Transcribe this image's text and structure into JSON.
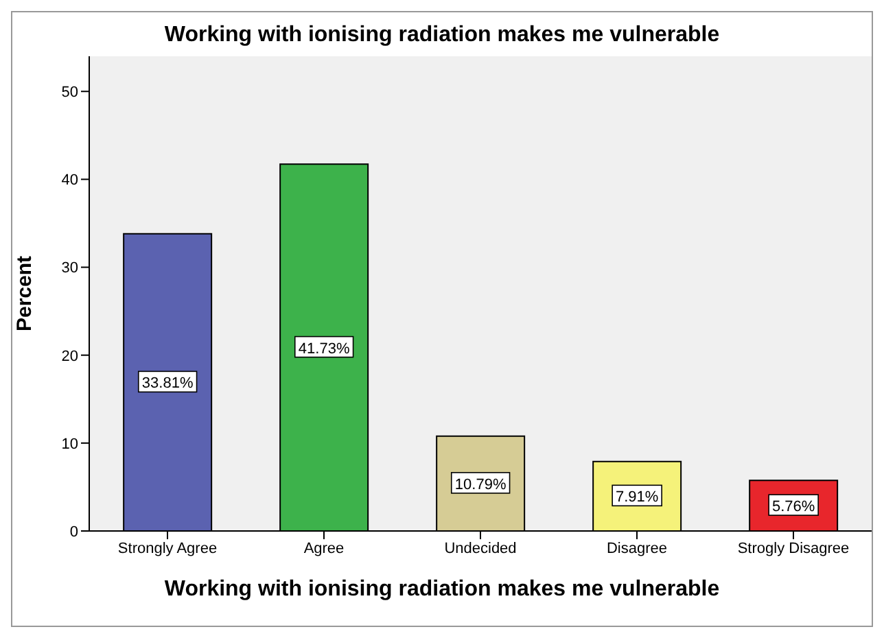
{
  "chart_data": {
    "type": "bar",
    "title": "Working with ionising radiation makes me vulnerable",
    "xlabel": "Working with ionising radiation makes me vulnerable",
    "ylabel": "Percent",
    "categories": [
      "Strongly Agree",
      "Agree",
      "Undecided",
      "Disagree",
      "Strogly Disagree"
    ],
    "values": [
      33.81,
      41.73,
      10.79,
      7.91,
      5.76
    ],
    "value_labels": [
      "33.81%",
      "41.73%",
      "10.79%",
      "7.91%",
      "5.76%"
    ],
    "colors": [
      "#5b62b0",
      "#3db24b",
      "#d6cc95",
      "#f5f27a",
      "#e8262c"
    ],
    "ylim": [
      0,
      54
    ],
    "yticks": [
      0,
      10,
      20,
      30,
      40,
      50
    ],
    "grid": false,
    "legend": false
  }
}
